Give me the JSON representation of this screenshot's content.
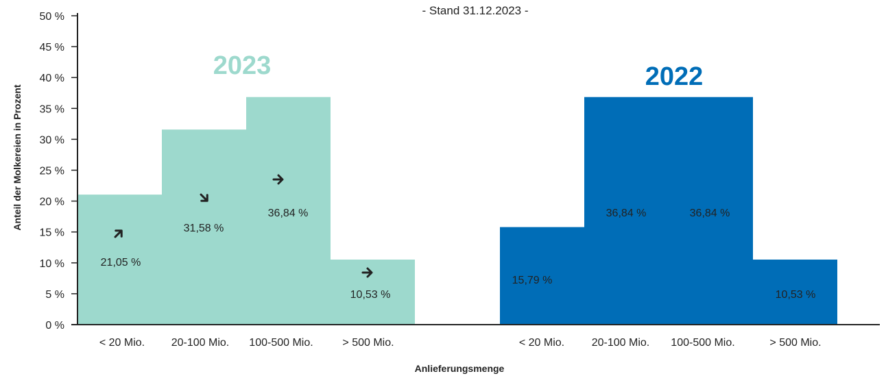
{
  "chart_data": {
    "type": "bar",
    "subtitle": "- Stand 31.12.2023 -",
    "xlabel": "Anlieferungsmenge",
    "ylabel": "Anteil der Molkereien in Prozent",
    "ylim": [
      0,
      50
    ],
    "y_ticks": [
      "0 %",
      "5 %",
      "10 %",
      "15 %",
      "20 %",
      "25 %",
      "30 %",
      "35 %",
      "40 %",
      "45 %",
      "50 %"
    ],
    "categories": [
      "< 20 Mio.",
      "20-100 Mio.",
      "100-500 Mio.",
      "> 500 Mio."
    ],
    "series": [
      {
        "name": "2023",
        "color": "#9dd9cd",
        "title_color": "#9dd9cd",
        "values": [
          21.05,
          31.58,
          36.84,
          10.53
        ],
        "labels": [
          "21,05 %",
          "31,58 %",
          "36,84 %",
          "10,53 %"
        ],
        "trend_icons": [
          "arrow-up-right-icon",
          "arrow-down-right-icon",
          "arrow-right-icon",
          "arrow-right-icon"
        ]
      },
      {
        "name": "2022",
        "color": "#006db7",
        "title_color": "#006db7",
        "values": [
          15.79,
          36.84,
          36.84,
          10.53
        ],
        "labels": [
          "15,79 %",
          "36,84 %",
          "36,84 %",
          "10,53 %"
        ]
      }
    ],
    "grid": false
  }
}
